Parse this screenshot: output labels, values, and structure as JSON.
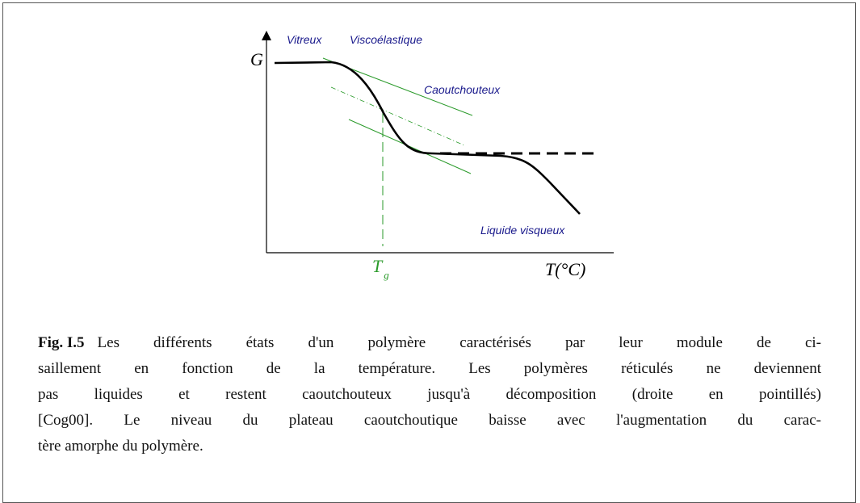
{
  "figure": {
    "axis_y": "G",
    "axis_x": "T(°C)",
    "tg_main": "T",
    "tg_sub": "g",
    "regions": {
      "vitreux": "Vitreux",
      "visco": "Viscoélastique",
      "caout": "Caoutchouteux",
      "liquide": "Liquide visqueux"
    }
  },
  "caption": {
    "label": "Fig. I.5",
    "lines": [
      "Les différents états d'un polymère caractérisés par leur module de ci-",
      "saillement en fonction de la température. Les polymères réticulés ne deviennent",
      "pas liquides et restent caoutchouteux jusqu'à décomposition (droite en pointillés)",
      "[Cog00]. Le niveau du plateau caoutchoutique baisse avec l'augmentation du carac-",
      "tère amorphe du polymère."
    ]
  }
}
